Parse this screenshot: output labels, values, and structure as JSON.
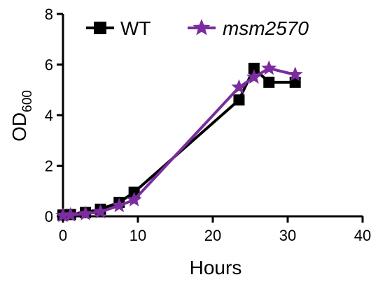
{
  "chart_data": {
    "type": "line",
    "title": "",
    "xlabel": "Hours",
    "ylabel": "OD",
    "ylabel_subscript": "600",
    "xlim": [
      0,
      40
    ],
    "ylim": [
      0,
      8
    ],
    "xticks": [
      "0",
      "10",
      "20",
      "30",
      "40"
    ],
    "yticks": [
      "0",
      "2",
      "4",
      "6",
      "8"
    ],
    "grid": false,
    "legend_position": "top",
    "series": [
      {
        "name": "WT",
        "italic": false,
        "color": "#000000",
        "marker": "square",
        "x": [
          0,
          1,
          3,
          5,
          7.5,
          9.5,
          23.5,
          25.5,
          27.5,
          31
        ],
        "y": [
          0.05,
          0.07,
          0.15,
          0.28,
          0.55,
          0.95,
          4.6,
          5.85,
          5.3,
          5.3
        ]
      },
      {
        "name": "msm2570",
        "italic": true,
        "color": "#7b2c9e",
        "marker": "star",
        "x": [
          0,
          1,
          3,
          5,
          7.5,
          9.5,
          23.5,
          25.5,
          27.5,
          31
        ],
        "y": [
          0.03,
          0.05,
          0.1,
          0.18,
          0.42,
          0.65,
          5.1,
          5.5,
          5.85,
          5.6
        ]
      }
    ]
  }
}
